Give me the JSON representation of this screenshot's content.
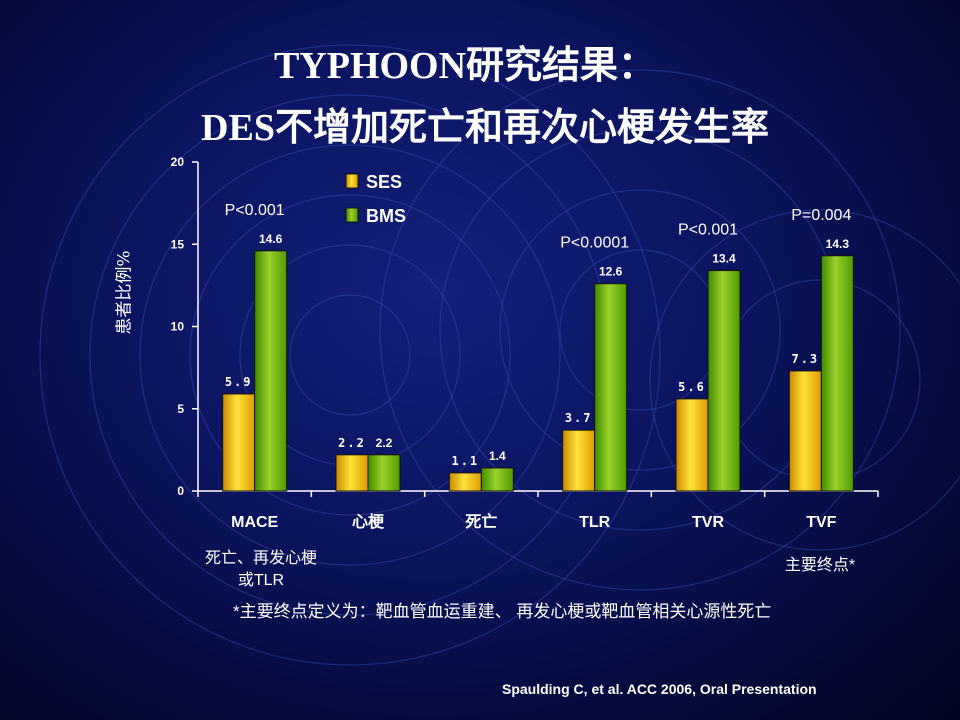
{
  "slide": {
    "title_line1": "TYPHOON研究结果：",
    "title_line2": "DES不增加死亡和再次心梗发生率",
    "footnote": "*主要终点定义为：靶血管血运重建、 再发心梗或靶血管相关心源性死亡",
    "citation": "Spaulding C, et al. ACC 2006, Oral Presentation",
    "mace_note": [
      "死亡、再发心梗",
      "或TLR"
    ],
    "tvf_note": "主要终点*"
  },
  "chart_data": {
    "type": "bar",
    "ylabel": "患者比例%",
    "ylim": [
      0,
      20
    ],
    "yticks": [
      0,
      5,
      10,
      15,
      20
    ],
    "categories": [
      "MACE",
      "心梗",
      "死亡",
      "TLR",
      "TVR",
      "TVF"
    ],
    "series": [
      {
        "name": "SES",
        "values": [
          5.9,
          2.2,
          1.1,
          3.7,
          5.6,
          7.3
        ],
        "value_labels": [
          "5.9",
          "2.2",
          "1.1",
          "3.7",
          "5.6",
          "7.3"
        ],
        "color": "#f0b400"
      },
      {
        "name": "BMS",
        "values": [
          14.6,
          2.2,
          1.4,
          12.6,
          13.4,
          14.3
        ],
        "value_labels": [
          "14.6",
          "2.2",
          "1.4",
          "12.6",
          "13.4",
          "14.3"
        ],
        "color": "#66b800"
      }
    ],
    "p_values": [
      "P<0.001",
      "",
      "",
      "P<0.0001",
      "P<0.001",
      "P=0.004"
    ],
    "legend_position": "top-left"
  }
}
